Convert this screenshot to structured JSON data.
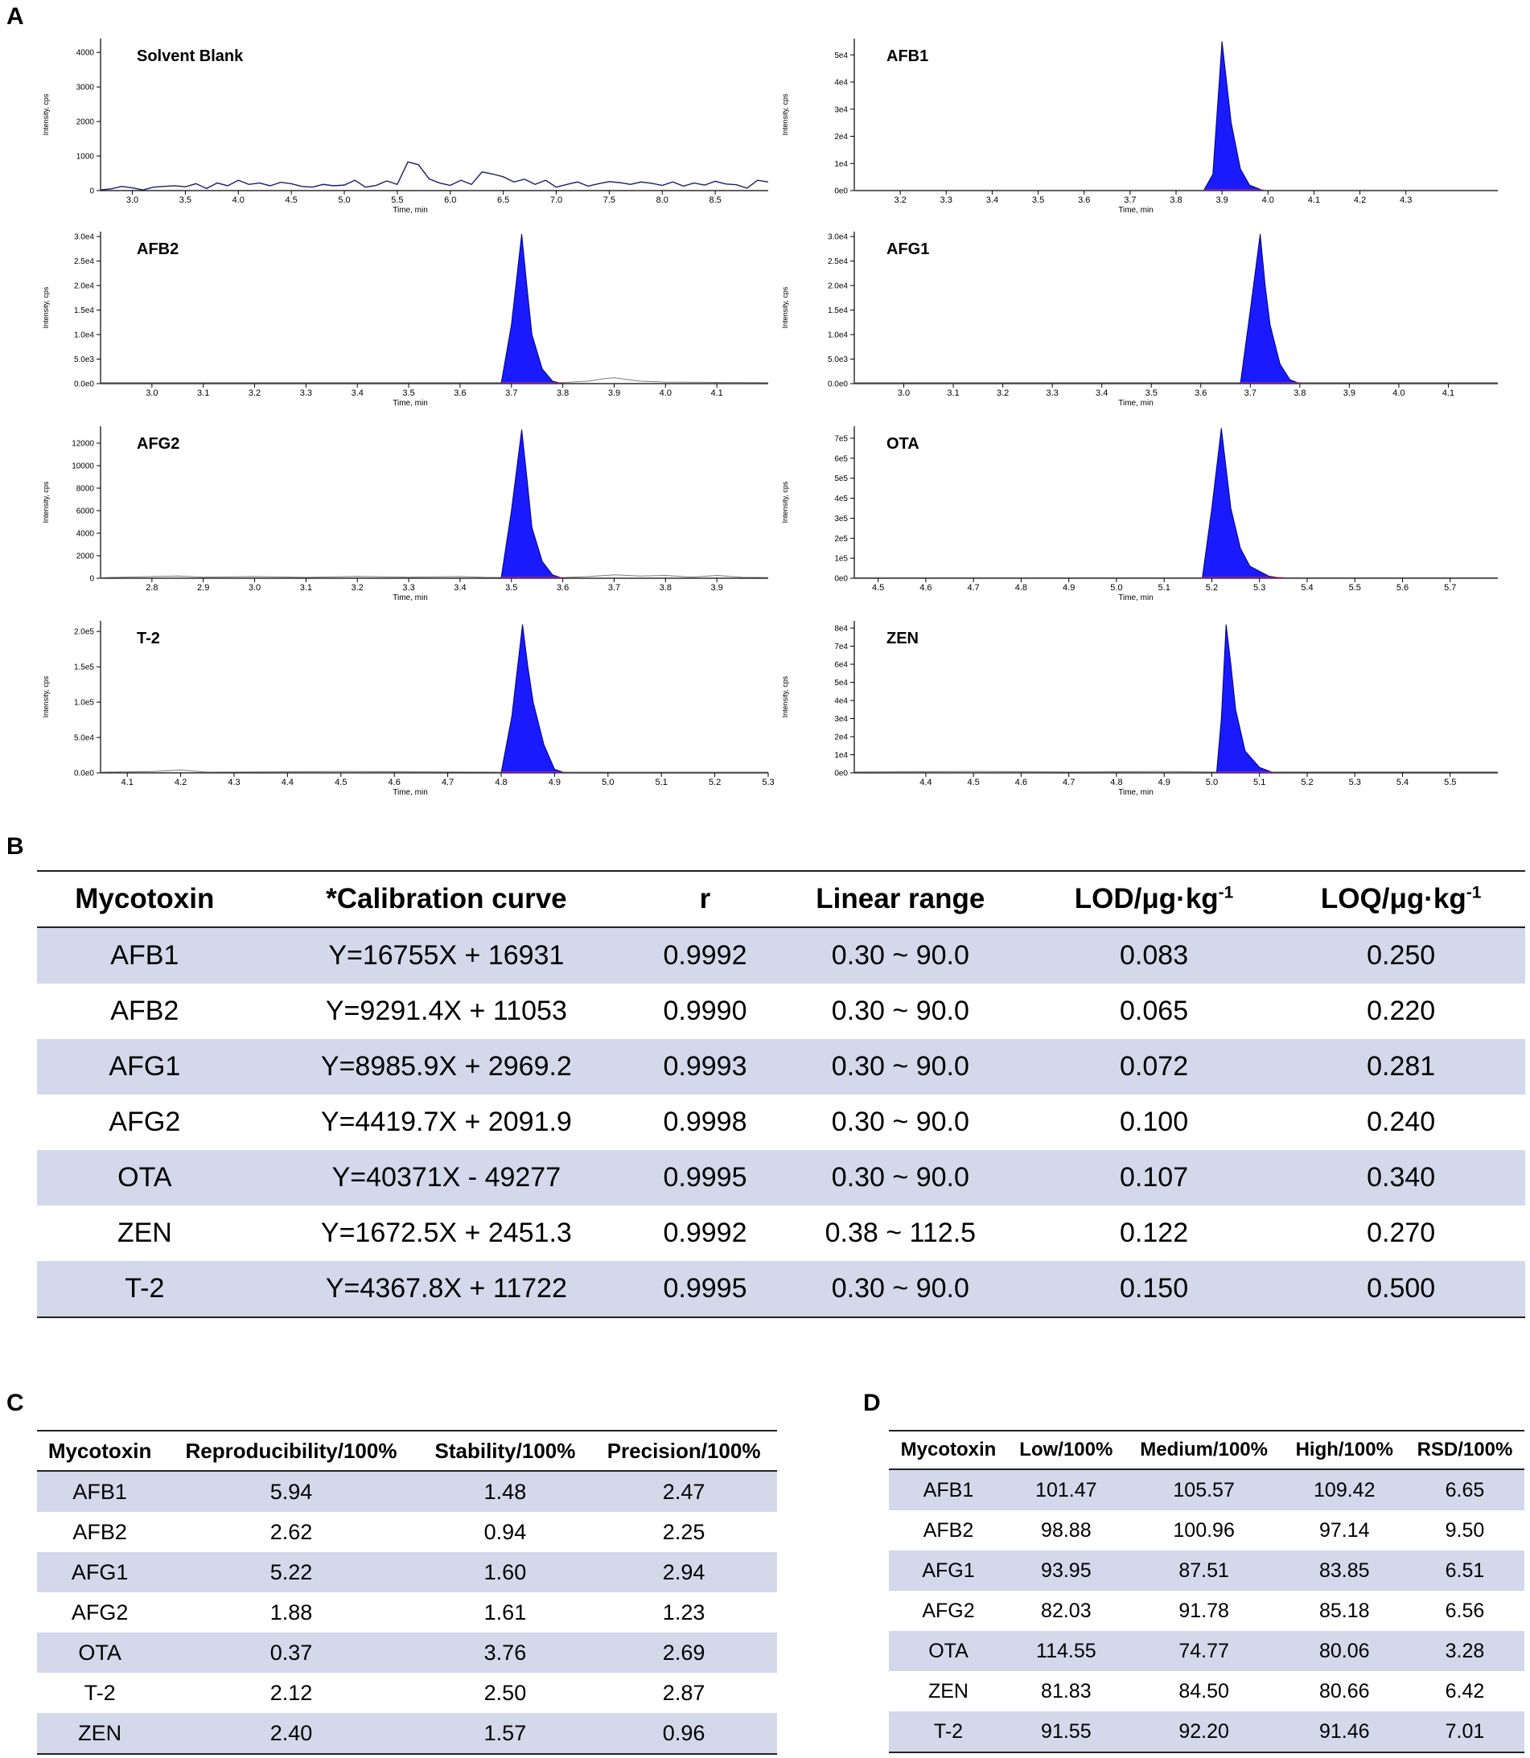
{
  "colors": {
    "peak_fill": "#1a1aff",
    "peak_edge": "#000080",
    "baseline": "#7a7a7a",
    "blank_line": "#1c1c6e",
    "row_shade": "#d3d8ea"
  },
  "panels": {
    "a": "A",
    "b": "B",
    "c": "C",
    "d": "D"
  },
  "chart_data": [
    {
      "type": "line",
      "title": "Solvent Blank",
      "xlabel": "Time, min",
      "ylabel": "Intensity, cps",
      "xlim": [
        2.7,
        9.0
      ],
      "ylim": [
        0,
        4400
      ],
      "xticks": [
        "3.0",
        "3.5",
        "4.0",
        "4.5",
        "5.0",
        "5.5",
        "6.0",
        "6.5",
        "7.0",
        "7.5",
        "8.0",
        "8.5"
      ],
      "yticks": [
        "0",
        "1000",
        "2000",
        "3000",
        "4000"
      ],
      "peak": null,
      "baseline": [
        [
          2.7,
          20
        ],
        [
          2.8,
          50
        ],
        [
          2.9,
          120
        ],
        [
          3.0,
          80
        ],
        [
          3.1,
          20
        ],
        [
          3.2,
          100
        ],
        [
          3.3,
          120
        ],
        [
          3.4,
          140
        ],
        [
          3.5,
          110
        ],
        [
          3.6,
          200
        ],
        [
          3.7,
          60
        ],
        [
          3.8,
          220
        ],
        [
          3.9,
          140
        ],
        [
          4.0,
          300
        ],
        [
          4.1,
          180
        ],
        [
          4.2,
          220
        ],
        [
          4.3,
          140
        ],
        [
          4.4,
          240
        ],
        [
          4.5,
          200
        ],
        [
          4.6,
          120
        ],
        [
          4.7,
          100
        ],
        [
          4.8,
          180
        ],
        [
          4.9,
          140
        ],
        [
          5.0,
          160
        ],
        [
          5.1,
          300
        ],
        [
          5.2,
          100
        ],
        [
          5.3,
          150
        ],
        [
          5.4,
          280
        ],
        [
          5.5,
          180
        ],
        [
          5.6,
          830
        ],
        [
          5.7,
          750
        ],
        [
          5.8,
          340
        ],
        [
          5.9,
          220
        ],
        [
          6.0,
          150
        ],
        [
          6.1,
          300
        ],
        [
          6.2,
          180
        ],
        [
          6.3,
          540
        ],
        [
          6.4,
          480
        ],
        [
          6.5,
          400
        ],
        [
          6.6,
          250
        ],
        [
          6.7,
          330
        ],
        [
          6.8,
          180
        ],
        [
          6.9,
          300
        ],
        [
          7.0,
          100
        ],
        [
          7.1,
          180
        ],
        [
          7.2,
          250
        ],
        [
          7.3,
          130
        ],
        [
          7.4,
          200
        ],
        [
          7.5,
          260
        ],
        [
          7.6,
          230
        ],
        [
          7.7,
          180
        ],
        [
          7.8,
          250
        ],
        [
          7.9,
          210
        ],
        [
          8.0,
          150
        ],
        [
          8.1,
          250
        ],
        [
          8.2,
          130
        ],
        [
          8.3,
          220
        ],
        [
          8.4,
          160
        ],
        [
          8.5,
          270
        ],
        [
          8.6,
          190
        ],
        [
          8.7,
          170
        ],
        [
          8.8,
          70
        ],
        [
          8.9,
          300
        ],
        [
          9.0,
          250
        ]
      ]
    },
    {
      "type": "area",
      "title": "AFB1",
      "xlabel": "Time, min",
      "ylabel": "Intensity, cps",
      "xlim": [
        3.1,
        4.5
      ],
      "ylim": [
        0,
        5.6
      ],
      "xticks": [
        "3.2",
        "3.3",
        "3.4",
        "3.5",
        "3.6",
        "3.7",
        "3.8",
        "3.9",
        "4.0",
        "4.1",
        "4.2",
        "4.3"
      ],
      "yticks": [
        "0e0",
        "1e4",
        "2e4",
        "3e4",
        "4e4",
        "5e4"
      ],
      "peak": [
        [
          3.86,
          0
        ],
        [
          3.88,
          0.6
        ],
        [
          3.9,
          5.5
        ],
        [
          3.91,
          4.0
        ],
        [
          3.92,
          2.5
        ],
        [
          3.94,
          0.8
        ],
        [
          3.96,
          0.2
        ],
        [
          3.99,
          0
        ]
      ],
      "baseline": [
        [
          3.1,
          0.02
        ],
        [
          4.5,
          0.02
        ]
      ]
    },
    {
      "type": "area",
      "title": "AFB2",
      "xlabel": "Time, min",
      "ylabel": "Intensity, cps",
      "xlim": [
        2.9,
        4.2
      ],
      "ylim": [
        0,
        3.1
      ],
      "xticks": [
        "3.0",
        "3.1",
        "3.2",
        "3.3",
        "3.4",
        "3.5",
        "3.6",
        "3.7",
        "3.8",
        "3.9",
        "4.0",
        "4.1"
      ],
      "yticks": [
        "0.0e0",
        "5.0e3",
        "1.0e4",
        "1.5e4",
        "2.0e4",
        "2.5e4",
        "3.0e4"
      ],
      "peak": [
        [
          3.68,
          0
        ],
        [
          3.7,
          1.2
        ],
        [
          3.72,
          3.05
        ],
        [
          3.73,
          2.0
        ],
        [
          3.74,
          1.0
        ],
        [
          3.76,
          0.3
        ],
        [
          3.78,
          0.05
        ],
        [
          3.8,
          0
        ]
      ],
      "baseline": [
        [
          2.9,
          0.02
        ],
        [
          3.8,
          0.02
        ],
        [
          3.85,
          0.05
        ],
        [
          3.88,
          0.1
        ],
        [
          3.9,
          0.12
        ],
        [
          3.95,
          0.05
        ],
        [
          4.0,
          0.03
        ],
        [
          4.2,
          0.02
        ]
      ]
    },
    {
      "type": "area",
      "title": "AFG1",
      "xlabel": "Time, min",
      "ylabel": "Intensity, cps",
      "xlim": [
        2.9,
        4.2
      ],
      "ylim": [
        0,
        3.1
      ],
      "xticks": [
        "3.0",
        "3.1",
        "3.2",
        "3.3",
        "3.4",
        "3.5",
        "3.6",
        "3.7",
        "3.8",
        "3.9",
        "4.0",
        "4.1"
      ],
      "yticks": [
        "0.0e0",
        "5.0e3",
        "1.0e4",
        "1.5e4",
        "2.0e4",
        "2.5e4",
        "3.0e4"
      ],
      "peak": [
        [
          3.68,
          0
        ],
        [
          3.7,
          1.5
        ],
        [
          3.72,
          3.05
        ],
        [
          3.73,
          2.0
        ],
        [
          3.74,
          1.2
        ],
        [
          3.76,
          0.4
        ],
        [
          3.78,
          0.08
        ],
        [
          3.8,
          0
        ]
      ],
      "baseline": [
        [
          2.9,
          0.02
        ],
        [
          4.2,
          0.02
        ]
      ]
    },
    {
      "type": "area",
      "title": "AFG2",
      "xlabel": "Time, min",
      "ylabel": "Intensity, cps",
      "xlim": [
        2.7,
        4.0
      ],
      "ylim": [
        0,
        13500
      ],
      "xticks": [
        "2.8",
        "2.9",
        "3.0",
        "3.1",
        "3.2",
        "3.3",
        "3.4",
        "3.5",
        "3.6",
        "3.7",
        "3.8",
        "3.9"
      ],
      "yticks": [
        "0",
        "2000",
        "4000",
        "6000",
        "8000",
        "10000",
        "12000"
      ],
      "peak": [
        [
          3.48,
          0
        ],
        [
          3.5,
          6000
        ],
        [
          3.52,
          13200
        ],
        [
          3.53,
          9000
        ],
        [
          3.54,
          4500
        ],
        [
          3.56,
          1500
        ],
        [
          3.58,
          300
        ],
        [
          3.6,
          0
        ]
      ],
      "baseline": [
        [
          2.7,
          50
        ],
        [
          2.85,
          200
        ],
        [
          2.9,
          100
        ],
        [
          3.0,
          150
        ],
        [
          3.1,
          80
        ],
        [
          3.2,
          160
        ],
        [
          3.3,
          100
        ],
        [
          3.4,
          150
        ],
        [
          3.45,
          80
        ],
        [
          3.6,
          60
        ],
        [
          3.65,
          150
        ],
        [
          3.7,
          300
        ],
        [
          3.75,
          200
        ],
        [
          3.8,
          250
        ],
        [
          3.85,
          100
        ],
        [
          3.9,
          250
        ],
        [
          3.95,
          80
        ],
        [
          4.0,
          60
        ]
      ]
    },
    {
      "type": "area",
      "title": "OTA",
      "xlabel": "Time, min",
      "ylabel": "Intensity, cps",
      "xlim": [
        4.45,
        5.8
      ],
      "ylim": [
        0,
        7.6
      ],
      "xticks": [
        "4.5",
        "4.6",
        "4.7",
        "4.8",
        "4.9",
        "5.0",
        "5.1",
        "5.2",
        "5.3",
        "5.4",
        "5.5",
        "5.6",
        "5.7"
      ],
      "yticks": [
        "0e0",
        "1e5",
        "2e5",
        "3e5",
        "4e5",
        "5e5",
        "6e5",
        "7e5"
      ],
      "peak": [
        [
          5.18,
          0
        ],
        [
          5.2,
          3.5
        ],
        [
          5.22,
          7.5
        ],
        [
          5.23,
          5.5
        ],
        [
          5.24,
          3.5
        ],
        [
          5.26,
          1.5
        ],
        [
          5.28,
          0.6
        ],
        [
          5.32,
          0.1
        ],
        [
          5.35,
          0
        ]
      ],
      "baseline": [
        [
          4.45,
          0.03
        ],
        [
          5.8,
          0.03
        ]
      ]
    },
    {
      "type": "area",
      "title": "T-2",
      "xlabel": "Time, min",
      "ylabel": "Intensity, cps",
      "xlim": [
        4.05,
        5.3
      ],
      "ylim": [
        0,
        2.15
      ],
      "xticks": [
        "4.1",
        "4.2",
        "4.3",
        "4.4",
        "4.5",
        "4.6",
        "4.7",
        "4.8",
        "4.9",
        "5.0",
        "5.1",
        "5.2",
        "5.3"
      ],
      "yticks": [
        "0.0e0",
        "5.0e4",
        "1.0e5",
        "1.5e5",
        "2.0e5"
      ],
      "peak": [
        [
          4.8,
          0
        ],
        [
          4.82,
          0.8
        ],
        [
          4.84,
          2.1
        ],
        [
          4.85,
          1.5
        ],
        [
          4.86,
          1.0
        ],
        [
          4.88,
          0.4
        ],
        [
          4.9,
          0.05
        ],
        [
          4.92,
          0
        ]
      ],
      "baseline": [
        [
          4.05,
          0.01
        ],
        [
          4.15,
          0.02
        ],
        [
          4.2,
          0.04
        ],
        [
          4.25,
          0.01
        ],
        [
          4.5,
          0.02
        ],
        [
          4.8,
          0.01
        ],
        [
          5.3,
          0.01
        ]
      ]
    },
    {
      "type": "area",
      "title": "ZEN",
      "xlabel": "Time, min",
      "ylabel": "Intensity, cps",
      "xlim": [
        4.25,
        5.6
      ],
      "ylim": [
        0,
        8.4
      ],
      "xticks": [
        "4.4",
        "4.5",
        "4.6",
        "4.7",
        "4.8",
        "4.9",
        "5.0",
        "5.1",
        "5.2",
        "5.3",
        "5.4",
        "5.5"
      ],
      "yticks": [
        "0e0",
        "1e4",
        "2e4",
        "3e4",
        "4e4",
        "5e4",
        "6e4",
        "7e4",
        "8e4"
      ],
      "peak": [
        [
          5.01,
          0
        ],
        [
          5.02,
          3.0
        ],
        [
          5.03,
          8.2
        ],
        [
          5.04,
          6.0
        ],
        [
          5.05,
          3.5
        ],
        [
          5.07,
          1.2
        ],
        [
          5.1,
          0.3
        ],
        [
          5.13,
          0
        ]
      ],
      "baseline": [
        [
          4.25,
          0.05
        ],
        [
          4.5,
          0.08
        ],
        [
          4.7,
          0.05
        ],
        [
          4.9,
          0.08
        ],
        [
          5.0,
          0.05
        ],
        [
          5.6,
          0.05
        ]
      ]
    }
  ],
  "table_b": {
    "headers": [
      "Mycotoxin",
      "*Calibration curve",
      "r",
      "Linear range",
      "LOD/μg·kg",
      "LOQ/μg·kg"
    ],
    "sup": "-1",
    "rows": [
      [
        "AFB1",
        "Y=16755X + 16931",
        "0.9992",
        "0.30 ~ 90.0",
        "0.083",
        "0.250"
      ],
      [
        "AFB2",
        "Y=9291.4X + 11053",
        "0.9990",
        "0.30 ~ 90.0",
        "0.065",
        "0.220"
      ],
      [
        "AFG1",
        "Y=8985.9X + 2969.2",
        "0.9993",
        "0.30 ~ 90.0",
        "0.072",
        "0.281"
      ],
      [
        "AFG2",
        "Y=4419.7X + 2091.9",
        "0.9998",
        "0.30 ~ 90.0",
        "0.100",
        "0.240"
      ],
      [
        "OTA",
        "Y=40371X - 49277",
        "0.9995",
        "0.30 ~ 90.0",
        "0.107",
        "0.340"
      ],
      [
        "ZEN",
        "Y=1672.5X + 2451.3",
        "0.9992",
        "0.38 ~ 112.5",
        "0.122",
        "0.270"
      ],
      [
        "T-2",
        "Y=4367.8X + 11722",
        "0.9995",
        "0.30 ~ 90.0",
        "0.150",
        "0.500"
      ]
    ]
  },
  "table_c": {
    "headers": [
      "Mycotoxin",
      "Reproducibility/100%",
      "Stability/100%",
      "Precision/100%"
    ],
    "rows": [
      [
        "AFB1",
        "5.94",
        "1.48",
        "2.47"
      ],
      [
        "AFB2",
        "2.62",
        "0.94",
        "2.25"
      ],
      [
        "AFG1",
        "5.22",
        "1.60",
        "2.94"
      ],
      [
        "AFG2",
        "1.88",
        "1.61",
        "1.23"
      ],
      [
        "OTA",
        "0.37",
        "3.76",
        "2.69"
      ],
      [
        "T-2",
        "2.12",
        "2.50",
        "2.87"
      ],
      [
        "ZEN",
        "2.40",
        "1.57",
        "0.96"
      ]
    ]
  },
  "table_d": {
    "headers": [
      "Mycotoxin",
      "Low/100%",
      "Medium/100%",
      "High/100%",
      "RSD/100%"
    ],
    "rows": [
      [
        "AFB1",
        "101.47",
        "105.57",
        "109.42",
        "6.65"
      ],
      [
        "AFB2",
        "98.88",
        "100.96",
        "97.14",
        "9.50"
      ],
      [
        "AFG1",
        "93.95",
        "87.51",
        "83.85",
        "6.51"
      ],
      [
        "AFG2",
        "82.03",
        "91.78",
        "85.18",
        "6.56"
      ],
      [
        "OTA",
        "114.55",
        "74.77",
        "80.06",
        "3.28"
      ],
      [
        "ZEN",
        "81.83",
        "84.50",
        "80.66",
        "6.42"
      ],
      [
        "T-2",
        "91.55",
        "92.20",
        "91.46",
        "7.01"
      ]
    ]
  }
}
